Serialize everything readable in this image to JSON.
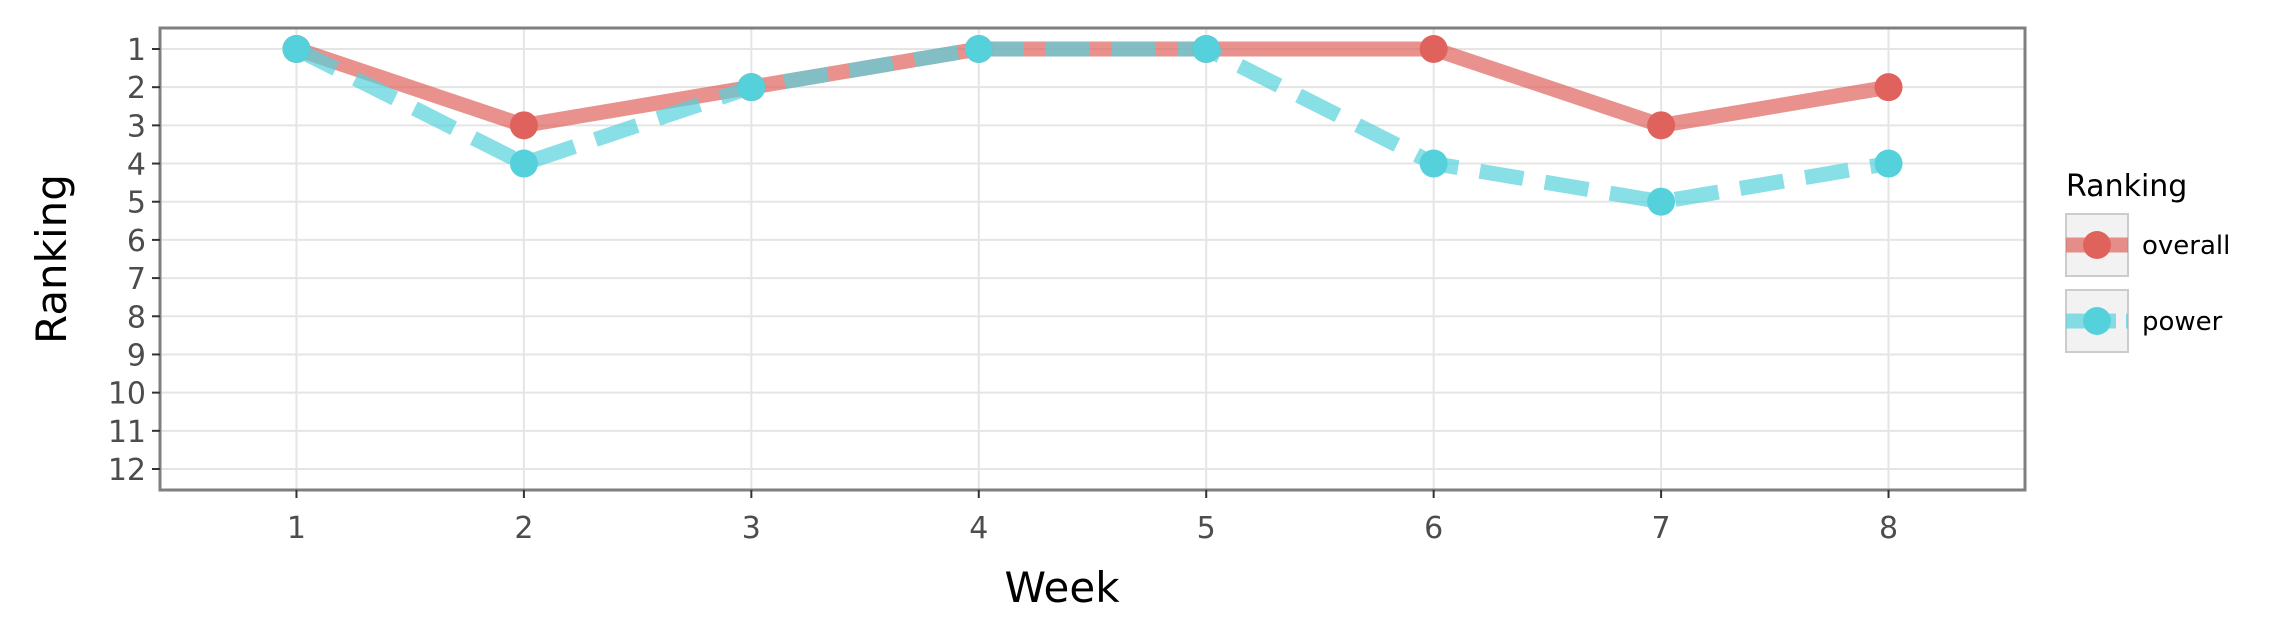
{
  "chart_data": {
    "type": "line",
    "xlabel": "Week",
    "ylabel": "Ranking",
    "x": [
      1,
      2,
      3,
      4,
      5,
      6,
      7,
      8
    ],
    "xlim": [
      0.4,
      8.6
    ],
    "ylim": [
      12.55,
      0.45
    ],
    "y_reversed": true,
    "x_ticks": [
      1,
      2,
      3,
      4,
      5,
      6,
      7,
      8
    ],
    "y_ticks": [
      1,
      2,
      3,
      4,
      5,
      6,
      7,
      8,
      9,
      10,
      11,
      12
    ],
    "grid": true,
    "legend": {
      "title": "Ranking",
      "position": "right"
    },
    "series": [
      {
        "name": "overall",
        "values": [
          1,
          3,
          2,
          1,
          1,
          1,
          3,
          2
        ],
        "color": "#e0625c",
        "line_style": "solid"
      },
      {
        "name": "power",
        "values": [
          1,
          4,
          2,
          1,
          1,
          4,
          5,
          4
        ],
        "color": "#55d1dc",
        "line_style": "dashed"
      }
    ]
  }
}
